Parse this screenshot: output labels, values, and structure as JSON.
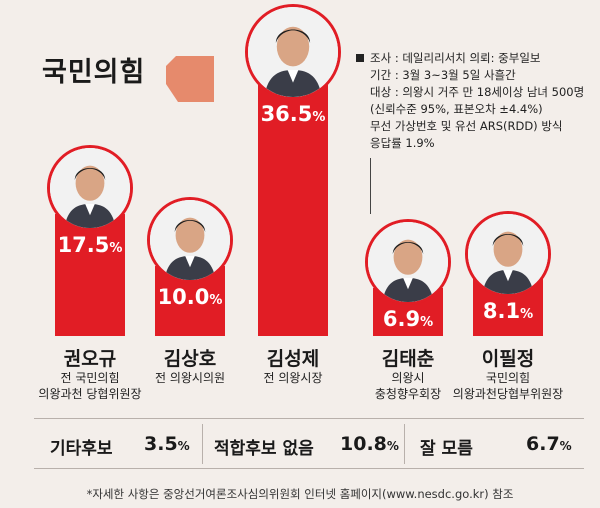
{
  "party": {
    "name": "국민의힘",
    "mark_color": "#e68a6c"
  },
  "survey": {
    "lines": [
      "조사 : 데일리리서치 의뢰: 중부일보",
      "기간 : 3월 3~3월 5일 사흘간",
      "대상 : 의왕시 거주 만 18세이상 남녀 500명",
      "(신뢰수준 95%, 표본오차 ±4.4%)",
      "무선 가상번호 및 유선 ARS(RDD) 방식",
      "응답률 1.9%"
    ]
  },
  "chart_data": {
    "type": "bar",
    "categories": [
      "권오규",
      "김상호",
      "김성제",
      "김태춘",
      "이필정"
    ],
    "values": [
      17.5,
      10.0,
      36.5,
      6.9,
      8.1
    ],
    "value_labels": [
      "17.5",
      "10.0",
      "36.5",
      "6.9",
      "8.1"
    ],
    "unit": "%",
    "roles": [
      [
        "전 국민의힘",
        "의왕과천 당협위원장"
      ],
      [
        "전 의왕시의원"
      ],
      [
        "전 의왕시장"
      ],
      [
        "의왕시",
        "충청향우회장"
      ],
      [
        "국민의힘",
        "의왕과천당협부위원장"
      ]
    ],
    "bar_color": "#e11d25",
    "others": [
      {
        "label": "기타후보",
        "value": 3.5,
        "value_label": "3.5"
      },
      {
        "label": "적합후보 없음",
        "value": 10.8,
        "value_label": "10.8"
      },
      {
        "label": "잘 모름",
        "value": 6.7,
        "value_label": "6.7"
      }
    ]
  },
  "footnote": "*자세한 사항은 중앙선거여론조사심의위원회 인터넷 홈페이지(www.nesdc.go.kr) 참조"
}
